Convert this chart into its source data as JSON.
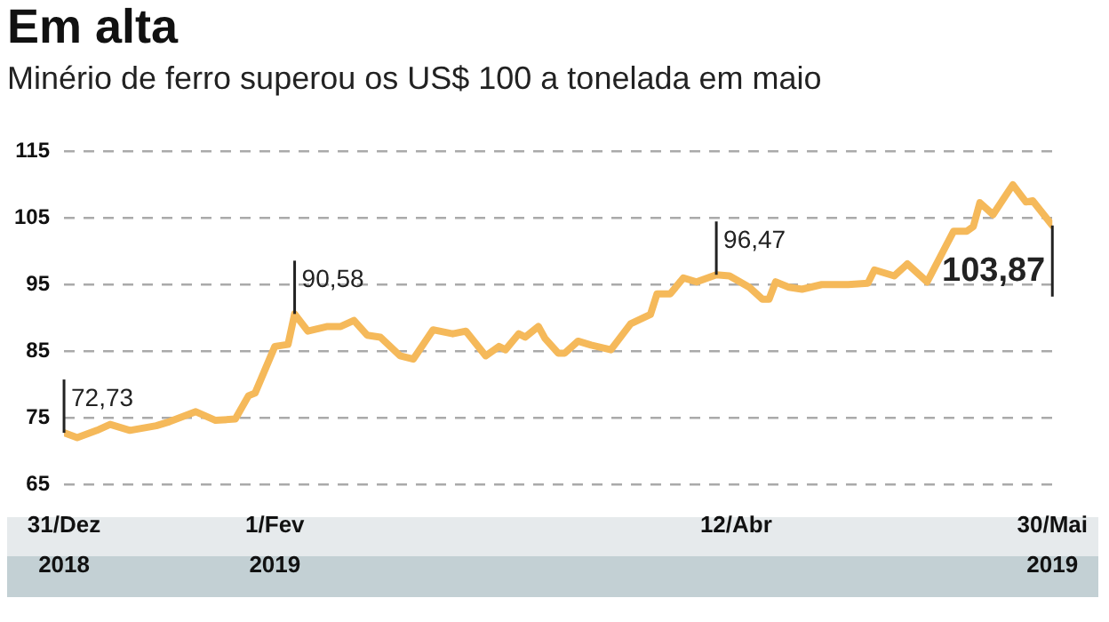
{
  "chart_data": {
    "type": "line",
    "title": "Em alta",
    "subtitle": "Minério de ferro superou os US$ 100 a tonelada em maio",
    "x": [
      "2018-12-31",
      "2019-01-02",
      "2019-01-05",
      "2019-01-07",
      "2019-01-10",
      "2019-01-14",
      "2019-01-16",
      "2019-01-20",
      "2019-01-23",
      "2019-01-26",
      "2019-01-28",
      "2019-01-29",
      "2019-02-01",
      "2019-02-03",
      "2019-02-04",
      "2019-02-06",
      "2019-02-09",
      "2019-02-11",
      "2019-02-13",
      "2019-02-15",
      "2019-02-17",
      "2019-02-20",
      "2019-02-22",
      "2019-02-25",
      "2019-02-26",
      "2019-02-28",
      "2019-03-02",
      "2019-03-05",
      "2019-03-07",
      "2019-03-08",
      "2019-03-10",
      "2019-03-11",
      "2019-03-13",
      "2019-03-14",
      "2019-03-16",
      "2019-03-17",
      "2019-03-19",
      "2019-03-21",
      "2019-03-24",
      "2019-03-27",
      "2019-03-30",
      "2019-03-31",
      "2019-04-02",
      "2019-04-04",
      "2019-04-06",
      "2019-04-09",
      "2019-04-11",
      "2019-04-14",
      "2019-04-16",
      "2019-04-17",
      "2019-04-18",
      "2019-04-20",
      "2019-04-22",
      "2019-04-25",
      "2019-04-29",
      "2019-05-02",
      "2019-05-03",
      "2019-05-06",
      "2019-05-08",
      "2019-05-11",
      "2019-05-15",
      "2019-05-17",
      "2019-05-18",
      "2019-05-19",
      "2019-05-21",
      "2019-05-24",
      "2019-05-26",
      "2019-05-27",
      "2019-05-30"
    ],
    "series": [
      {
        "color": "#f5b95a",
        "values": [
          72.73,
          72.0,
          73.1,
          74.0,
          73.1,
          73.8,
          74.4,
          75.9,
          74.6,
          74.8,
          78.3,
          78.7,
          85.7,
          86.0,
          90.58,
          88.0,
          88.7,
          88.7,
          89.6,
          87.4,
          87.1,
          84.3,
          83.8,
          88.2,
          88.0,
          87.6,
          88.0,
          84.3,
          85.7,
          85.2,
          87.6,
          87.1,
          88.7,
          86.9,
          84.7,
          84.7,
          86.5,
          85.9,
          85.2,
          89.1,
          90.5,
          93.6,
          93.6,
          96.0,
          95.4,
          96.47,
          96.3,
          94.6,
          92.8,
          92.8,
          95.4,
          94.6,
          94.3,
          95.0,
          95.0,
          95.2,
          97.2,
          96.3,
          98.1,
          95.4,
          103.0,
          103.0,
          103.7,
          107.3,
          105.5,
          110.0,
          107.4,
          107.6,
          103.87
        ],
        "value_labels": [
          "72,73",
          null,
          null,
          null,
          null,
          null,
          null,
          null,
          null,
          null,
          null,
          null,
          null,
          null,
          "90,58",
          null,
          null,
          null,
          null,
          null,
          null,
          null,
          null,
          null,
          null,
          null,
          null,
          null,
          null,
          null,
          null,
          null,
          null,
          null,
          null,
          null,
          null,
          null,
          null,
          null,
          null,
          null,
          null,
          null,
          null,
          "96,47",
          null,
          null,
          null,
          null,
          null,
          null,
          null,
          null,
          null,
          null,
          null,
          null,
          null,
          null,
          null,
          null,
          null,
          null,
          null,
          null,
          null,
          null,
          "103,87"
        ]
      }
    ],
    "ylim": [
      65,
      115
    ],
    "yticks": [
      65,
      75,
      85,
      95,
      105,
      115
    ],
    "xlim": [
      "2018-12-31",
      "2019-05-30"
    ],
    "xticks": [
      {
        "value": "2018-12-31",
        "label": "31/Dez\n2018"
      },
      {
        "value": "2019-02-01",
        "label": "1/Fev\n2019"
      },
      {
        "value": "2019-04-12",
        "label": "12/Abr"
      },
      {
        "value": "2019-05-30",
        "label": "30/Mai\n2019"
      }
    ],
    "grid": "y",
    "line_style": "solid",
    "marker": "none",
    "legend": false
  }
}
